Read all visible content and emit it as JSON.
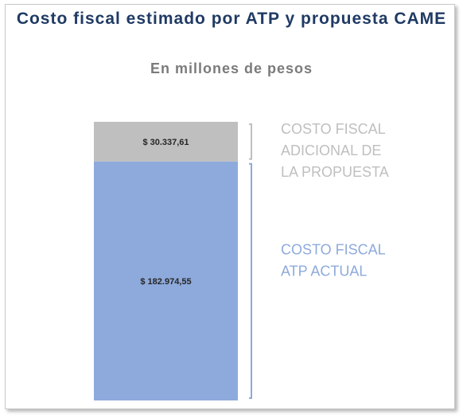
{
  "title": "Costo fiscal estimado por ATP y propuesta CAME",
  "subtitle": "En millones de pesos",
  "colors": {
    "title": "#1f3a64",
    "subtitle": "#7b7b7b",
    "atp": "#8eaadc",
    "adicional": "#bfbfbf",
    "atp_text": "#8eaadc",
    "adicional_text": "#bfbfbf"
  },
  "chart_data": {
    "type": "bar",
    "stacked": true,
    "categories": [
      ""
    ],
    "series": [
      {
        "key": "atp",
        "name": "COSTO FISCAL ATP ACTUAL",
        "label_lines": [
          "COSTO FISCAL",
          "ATP ACTUAL"
        ],
        "values": [
          182974.55
        ],
        "value_label": "$ 182.974,55"
      },
      {
        "key": "adicional",
        "name": "COSTO FISCAL ADICIONAL DE LA PROPUESTA",
        "label_lines": [
          "COSTO FISCAL",
          "ADICIONAL DE",
          "LA PROPUESTA"
        ],
        "values": [
          30337.61
        ],
        "value_label": "$ 30.337,61"
      }
    ],
    "title": "Costo fiscal estimado por ATP y propuesta CAME",
    "subtitle": "En millones de pesos",
    "unit": "millones de pesos",
    "legend": "right"
  }
}
